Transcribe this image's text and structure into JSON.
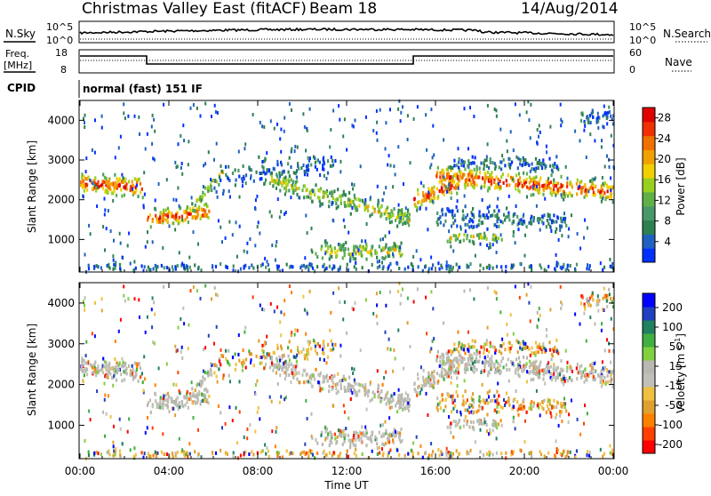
{
  "header": {
    "title": "Christmas Valley East (fitACF)",
    "beam": "Beam 18",
    "date": "14/Aug/2014"
  },
  "nsky_panel": {
    "left_label": "N.Sky",
    "right_label": "N.Search",
    "ticks_left": [
      "10^5",
      "10^0"
    ],
    "ticks_right": [
      "10^5",
      "10^0"
    ]
  },
  "freq_panel": {
    "left_label_1": "Freq.",
    "left_label_2": "[MHz]",
    "right_label": "Nave",
    "ticks_left": [
      "18",
      "8"
    ],
    "ticks_right": [
      "60",
      "0"
    ]
  },
  "cpid": {
    "label": "CPID",
    "text": "normal (fast) 151 IF"
  },
  "colors": {
    "power": [
      "#0030ff",
      "#2060c0",
      "#2e8050",
      "#489868",
      "#60b048",
      "#98d020",
      "#f0d000",
      "#f0a000",
      "#f07000",
      "#f03000",
      "#e00000"
    ],
    "velocity": [
      "#ff0000",
      "#ff4000",
      "#ff8000",
      "#e0a030",
      "#f0c040",
      "#c0c0b8",
      "#b8b8b0",
      "#80d040",
      "#40b040",
      "#208060",
      "#2040c0",
      "#0000ff"
    ]
  },
  "chart_data": [
    {
      "type": "heatmap",
      "name": "power",
      "xlabel": "",
      "ylabel": "Slant Range [km]",
      "x_ticks": [
        "00:00",
        "04:00",
        "08:00",
        "12:00",
        "16:00",
        "20:00",
        "00:00"
      ],
      "x_range_hours": [
        0,
        24
      ],
      "y_ticks": [
        1000,
        2000,
        3000,
        4000
      ],
      "y_range_km": [
        180,
        4500
      ],
      "colorbar": {
        "label": "Power [dB]",
        "ticks": [
          4,
          8,
          12,
          16,
          20,
          24,
          28
        ],
        "range": [
          0,
          30
        ]
      }
    },
    {
      "type": "heatmap",
      "name": "velocity",
      "xlabel": "Time UT",
      "ylabel": "Slant Range [km]",
      "x_ticks": [
        "00:00",
        "04:00",
        "08:00",
        "12:00",
        "16:00",
        "20:00",
        "00:00"
      ],
      "x_range_hours": [
        0,
        24
      ],
      "y_ticks": [
        1000,
        2000,
        3000,
        4000
      ],
      "y_range_km": [
        180,
        4500
      ],
      "colorbar": {
        "label": "Velocity [m s",
        "label_sup": "-1",
        "label_end": "]",
        "ticks": [
          "200",
          "100",
          "50",
          "15",
          "-15",
          "-50",
          "-100",
          "-200"
        ]
      }
    }
  ]
}
